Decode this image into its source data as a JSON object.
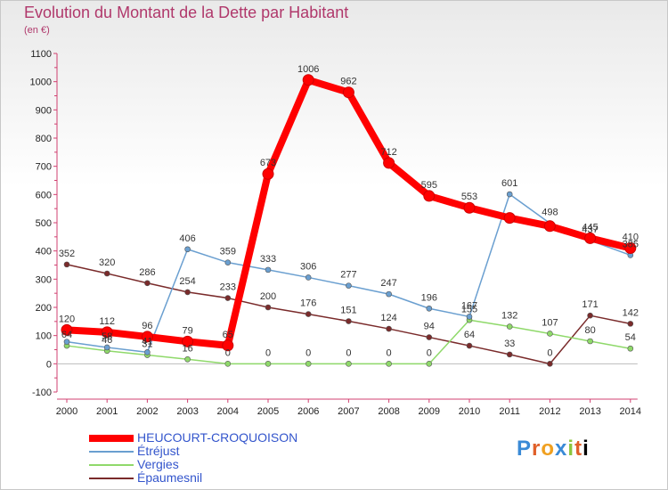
{
  "title": "Evolution du Montant de la Dette par Habitant",
  "subtitle": "(en €)",
  "brand": "Proxiti",
  "chart_data": {
    "type": "line",
    "title": "Evolution du Montant de la Dette par Habitant",
    "subtitle": "(en €)",
    "x": [
      2000,
      2001,
      2002,
      2003,
      2004,
      2005,
      2006,
      2007,
      2008,
      2009,
      2010,
      2011,
      2012,
      2013,
      2014
    ],
    "ylim": [
      -100,
      1100
    ],
    "yticks": [
      -100,
      0,
      100,
      200,
      300,
      400,
      500,
      600,
      700,
      800,
      900,
      1000,
      1100
    ],
    "grid": false,
    "legend_position": "bottom-left",
    "series": [
      {
        "name": "HEUCOURT-CROQUOISON",
        "color": "#ff0000",
        "values": [
          120,
          112,
          96,
          79,
          65,
          673,
          1006,
          962,
          712,
          595,
          553,
          517,
          488,
          445,
          410
        ],
        "labels": [
          "120",
          "112",
          "96",
          "79",
          "65",
          "673",
          "1006",
          "962",
          "712",
          "595",
          "553",
          "",
          "",
          "445",
          "410"
        ]
      },
      {
        "name": "Étréjust",
        "color": "#6a9fd0",
        "values": [
          78,
          58,
          41,
          406,
          359,
          333,
          306,
          277,
          247,
          196,
          167,
          601,
          498,
          437,
          385
        ],
        "labels": [
          "",
          "58",
          "41",
          "406",
          "359",
          "333",
          "306",
          "277",
          "247",
          "196",
          "167",
          "601",
          "498",
          "437",
          "385"
        ]
      },
      {
        "name": "Vergies",
        "color": "#8fd96a",
        "values": [
          64,
          46,
          31,
          16,
          0,
          0,
          0,
          0,
          0,
          0,
          155,
          132,
          107,
          80,
          54
        ],
        "labels": [
          "64",
          "46",
          "31",
          "16",
          "0",
          "0",
          "0",
          "0",
          "0",
          "0",
          "155",
          "132",
          "107",
          "80",
          "54"
        ]
      },
      {
        "name": "Épaumesnil",
        "color": "#7a2b2b",
        "values": [
          352,
          320,
          286,
          254,
          233,
          200,
          176,
          151,
          124,
          94,
          64,
          33,
          0,
          171,
          142
        ],
        "labels": [
          "352",
          "320",
          "286",
          "254",
          "233",
          "200",
          "176",
          "151",
          "124",
          "94",
          "64",
          "33",
          "0",
          "171",
          "142"
        ]
      }
    ]
  }
}
